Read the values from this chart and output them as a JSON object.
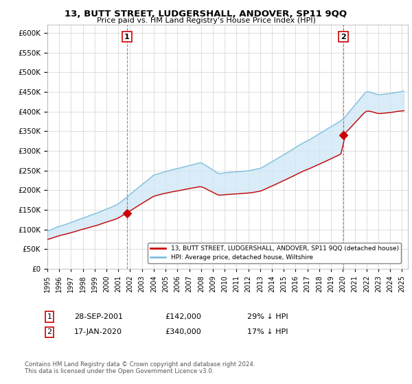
{
  "title": "13, BUTT STREET, LUDGERSHALL, ANDOVER, SP11 9QQ",
  "subtitle": "Price paid vs. HM Land Registry's House Price Index (HPI)",
  "ylim": [
    0,
    620000
  ],
  "yticks": [
    0,
    50000,
    100000,
    150000,
    200000,
    250000,
    300000,
    350000,
    400000,
    450000,
    500000,
    550000,
    600000
  ],
  "sale1_year": 2001.74,
  "sale1_price": 142000,
  "sale2_year": 2020.04,
  "sale2_price": 340000,
  "hpi_color": "#7fbfdf",
  "price_color": "#cc0000",
  "fill_color": "#d0e8f5",
  "legend_house": "13, BUTT STREET, LUDGERSHALL, ANDOVER, SP11 9QQ (detached house)",
  "legend_hpi": "HPI: Average price, detached house, Wiltshire",
  "footnote": "Contains HM Land Registry data © Crown copyright and database right 2024.\nThis data is licensed under the Open Government Licence v3.0.",
  "background_color": "#ffffff"
}
